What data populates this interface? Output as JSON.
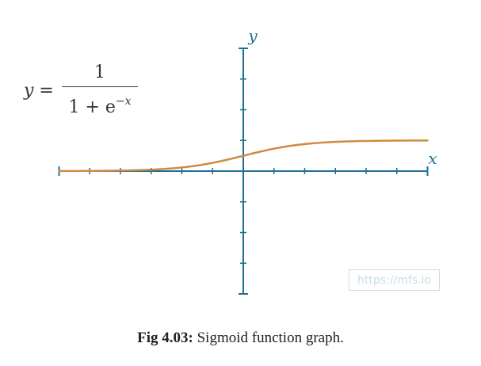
{
  "chart_data": {
    "type": "line",
    "function": "sigmoid",
    "x": [
      -6,
      -5.5,
      -5,
      -4.5,
      -4,
      -3.5,
      -3,
      -2.5,
      -2,
      -1.5,
      -1,
      -0.5,
      0,
      0.5,
      1,
      1.5,
      2,
      2.5,
      3,
      3.5,
      4,
      4.5,
      5,
      5.5,
      6
    ],
    "y": [
      0.0025,
      0.0041,
      0.0067,
      0.011,
      0.018,
      0.029,
      0.047,
      0.076,
      0.119,
      0.182,
      0.269,
      0.378,
      0.5,
      0.622,
      0.731,
      0.818,
      0.881,
      0.924,
      0.953,
      0.971,
      0.982,
      0.989,
      0.993,
      0.996,
      0.998
    ],
    "xlim": [
      -6,
      6
    ],
    "ylim": [
      -4,
      4
    ],
    "xlabel": "x",
    "ylabel": "y",
    "grid": false,
    "colors": {
      "axis": "#1f6f95",
      "curve": "#d08a3f"
    }
  },
  "equation": {
    "lhs": "y =",
    "numerator": "1",
    "denominator_base": "1 + e",
    "denominator_exponent": "−x"
  },
  "watermark": "https://mfs.io",
  "caption": {
    "label": "Fig 4.03:",
    "text": " Sigmoid function graph."
  }
}
